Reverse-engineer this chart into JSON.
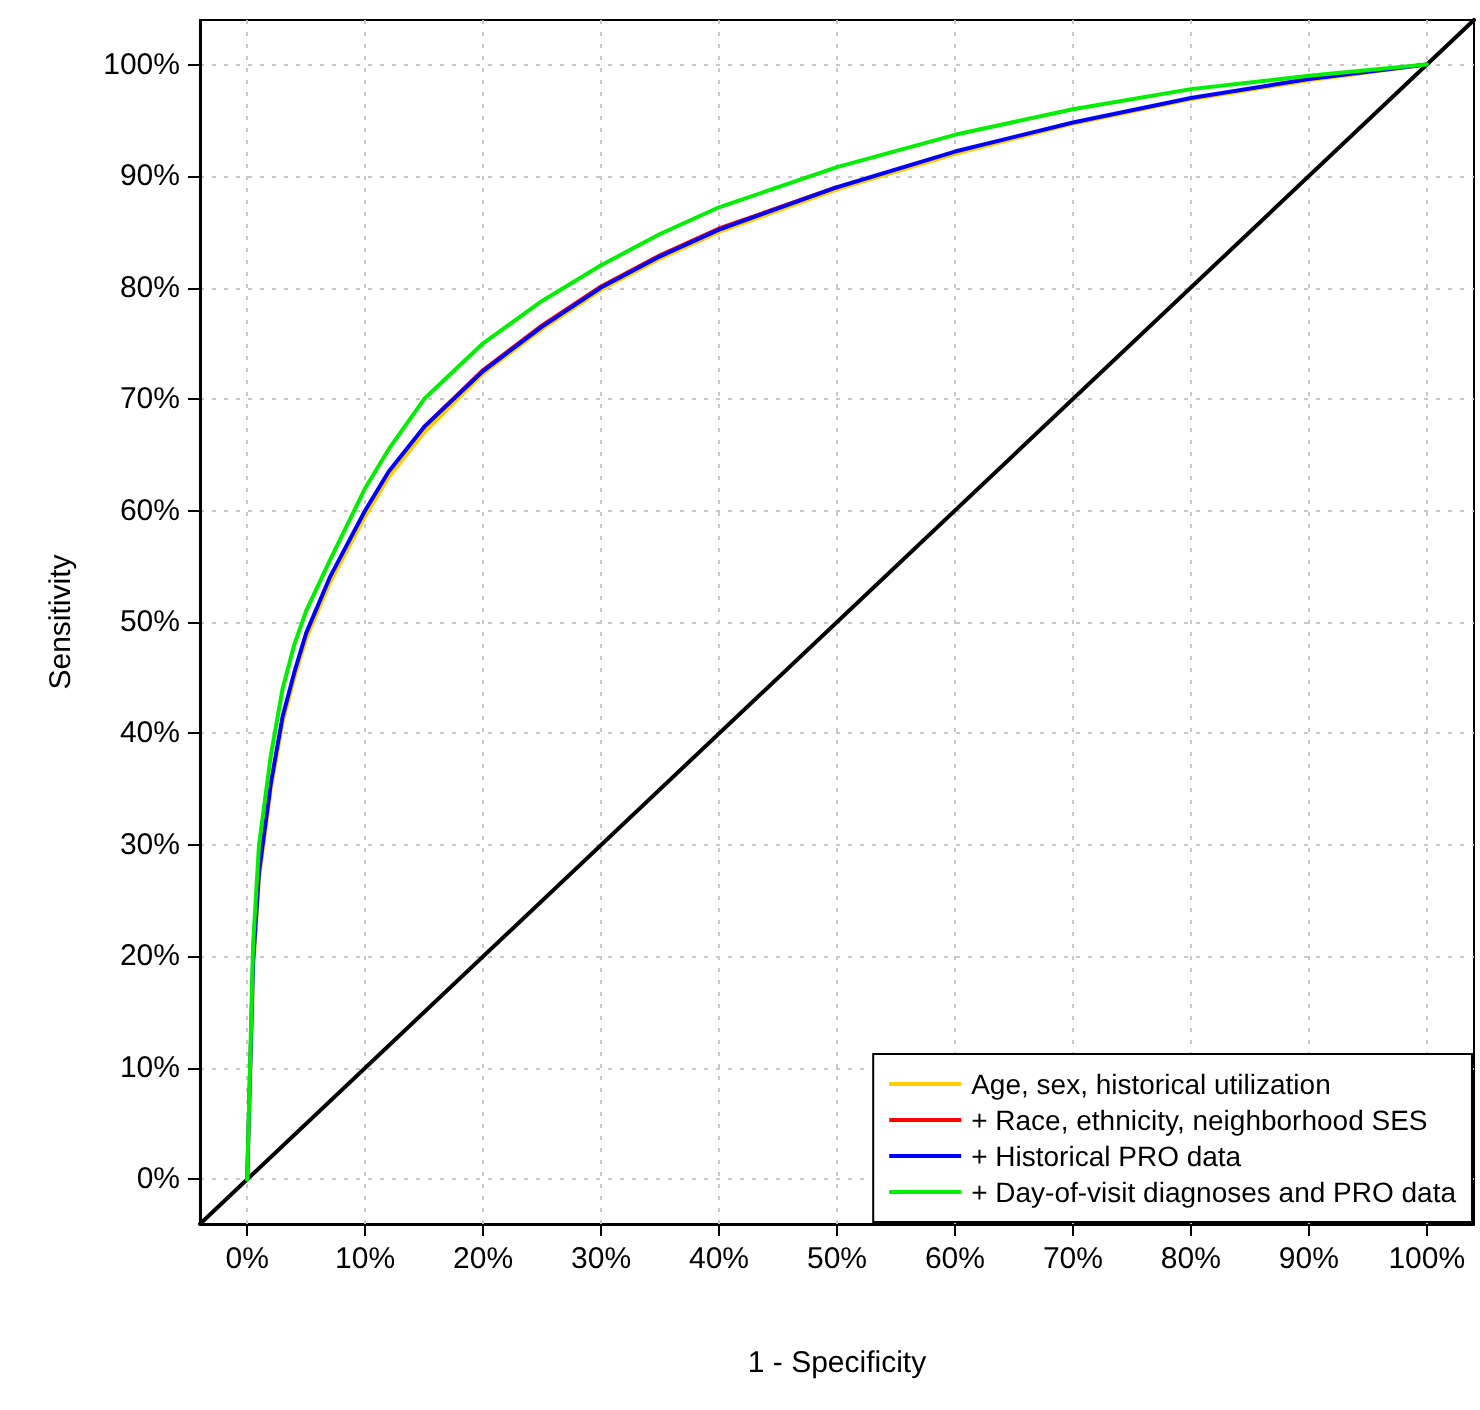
{
  "chart_data": {
    "type": "line",
    "xlabel": "1 - Specificity",
    "ylabel": "Sensitivity",
    "xlim": [
      -4,
      104
    ],
    "ylim": [
      -4,
      104
    ],
    "xticks": [
      {
        "value": 0,
        "label": "0%"
      },
      {
        "value": 10,
        "label": "10%"
      },
      {
        "value": 20,
        "label": "20%"
      },
      {
        "value": 30,
        "label": "30%"
      },
      {
        "value": 40,
        "label": "40%"
      },
      {
        "value": 50,
        "label": "50%"
      },
      {
        "value": 60,
        "label": "60%"
      },
      {
        "value": 70,
        "label": "70%"
      },
      {
        "value": 80,
        "label": "80%"
      },
      {
        "value": 90,
        "label": "90%"
      },
      {
        "value": 100,
        "label": "100%"
      }
    ],
    "yticks": [
      {
        "value": 0,
        "label": "0%"
      },
      {
        "value": 10,
        "label": "10%"
      },
      {
        "value": 20,
        "label": "20%"
      },
      {
        "value": 30,
        "label": "30%"
      },
      {
        "value": 40,
        "label": "40%"
      },
      {
        "value": 50,
        "label": "50%"
      },
      {
        "value": 60,
        "label": "60%"
      },
      {
        "value": 70,
        "label": "70%"
      },
      {
        "value": 80,
        "label": "80%"
      },
      {
        "value": 90,
        "label": "90%"
      },
      {
        "value": 100,
        "label": "100%"
      }
    ],
    "grid": true,
    "legend": "bottom right",
    "marker": "none",
    "line_style": "solid",
    "series": [
      {
        "name": "Age, sex, historical utilization",
        "color": "#ffcc00",
        "x": [
          0,
          0.5,
          1,
          2,
          3,
          4,
          5,
          7,
          10,
          12,
          15,
          20,
          25,
          30,
          35,
          40,
          50,
          60,
          70,
          80,
          90,
          100
        ],
        "values": [
          0,
          19,
          27,
          35,
          41,
          45,
          48.5,
          53.5,
          59.5,
          63,
          67,
          72.3,
          76.3,
          79.8,
          82.6,
          85,
          88.8,
          92,
          94.7,
          96.9,
          98.6,
          100
        ]
      },
      {
        "name": "+ Race, ethnicity, neighborhood SES",
        "color": "#ff0000",
        "x": [
          15,
          20,
          25,
          30,
          35,
          40,
          50
        ],
        "values": [
          67.5,
          72.6,
          76.6,
          80.1,
          82.9,
          85.3,
          89
        ]
      },
      {
        "name": "+ Historical PRO data",
        "color": "#0000ff",
        "x": [
          0,
          0.5,
          1,
          2,
          3,
          4,
          5,
          7,
          10,
          12,
          15,
          20,
          25,
          30,
          35,
          40,
          50,
          60,
          70,
          80,
          90,
          100
        ],
        "values": [
          0,
          19.5,
          27.5,
          35.5,
          41.5,
          45.5,
          49,
          54,
          60,
          63.5,
          67.5,
          72.5,
          76.5,
          80,
          82.8,
          85.2,
          89,
          92.2,
          94.8,
          97,
          98.7,
          100
        ]
      },
      {
        "name": "+ Day-of-visit diagnoses and PRO data",
        "color": "#00ee00",
        "x": [
          0,
          0.5,
          1,
          2,
          3,
          4,
          5,
          7,
          10,
          12,
          15,
          20,
          25,
          30,
          35,
          40,
          50,
          60,
          70,
          80,
          90,
          100
        ],
        "values": [
          0,
          21,
          30,
          38,
          44,
          48,
          51,
          55.5,
          62,
          65.5,
          70,
          75,
          78.8,
          82,
          84.8,
          87.2,
          90.8,
          93.7,
          96,
          97.8,
          99,
          100
        ]
      },
      {
        "color": "#000000",
        "x": [
          -4,
          104
        ],
        "values": [
          -4,
          104
        ]
      }
    ]
  }
}
